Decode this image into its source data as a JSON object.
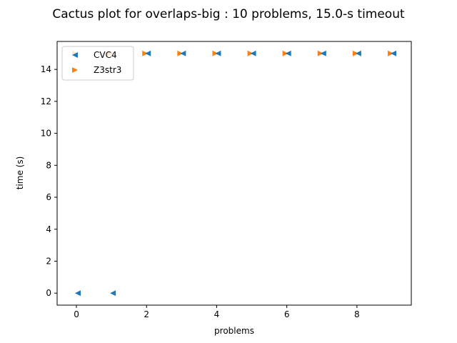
{
  "chart_data": {
    "type": "scatter",
    "title": "Cactus plot for overlaps-big : 10 problems, 15.0-s timeout",
    "xlabel": "problems",
    "ylabel": "time (s)",
    "xlim": [
      -0.55,
      9.55
    ],
    "ylim": [
      -0.75,
      15.75
    ],
    "xticks": [
      0,
      2,
      4,
      6,
      8
    ],
    "yticks": [
      0,
      2,
      4,
      6,
      8,
      10,
      12,
      14
    ],
    "grid": false,
    "legend_position": "top-left",
    "series": [
      {
        "name": "CVC4",
        "marker": "triangle-left",
        "color": "#1f77b4",
        "x": [
          0,
          1,
          2,
          3,
          4,
          5,
          6,
          7,
          8,
          9
        ],
        "y": [
          0,
          0,
          15,
          15,
          15,
          15,
          15,
          15,
          15,
          15
        ]
      },
      {
        "name": "Z3str3",
        "marker": "triangle-right",
        "color": "#ff7f0e",
        "x": [
          0,
          1,
          2,
          3,
          4,
          5,
          6,
          7,
          8,
          9
        ],
        "y": [
          15,
          15,
          15,
          15,
          15,
          15,
          15,
          15,
          15,
          15
        ]
      }
    ]
  }
}
